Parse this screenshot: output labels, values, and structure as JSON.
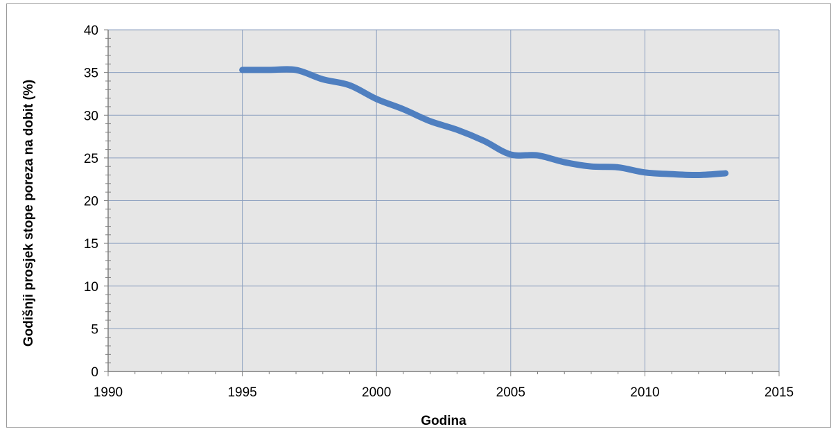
{
  "chart_data": {
    "type": "line",
    "title": "",
    "xlabel": "Godina",
    "ylabel": "Godišnji prosjek stope poreza na dobit (%)",
    "xlim": [
      1990,
      2015
    ],
    "ylim": [
      0,
      40
    ],
    "x_ticks": [
      1990,
      1995,
      2000,
      2005,
      2010,
      2015
    ],
    "y_ticks": [
      0,
      5,
      10,
      15,
      20,
      25,
      30,
      35,
      40
    ],
    "grid": true,
    "legend": "none",
    "series": [
      {
        "color": "#4f7fc0",
        "x": [
          1995,
          1996,
          1997,
          1998,
          1999,
          2000,
          2001,
          2002,
          2003,
          2004,
          2005,
          2006,
          2007,
          2008,
          2009,
          2010,
          2011,
          2012,
          2013
        ],
        "y": [
          35.3,
          35.3,
          35.3,
          34.2,
          33.5,
          31.9,
          30.7,
          29.3,
          28.3,
          27.0,
          25.4,
          25.3,
          24.5,
          24.0,
          23.9,
          23.3,
          23.1,
          23.0,
          23.2
        ]
      }
    ],
    "colors": {
      "plot_background": "#e6e6e6",
      "gridline": "#8b9fbf",
      "line": "#4f7fc0"
    }
  }
}
